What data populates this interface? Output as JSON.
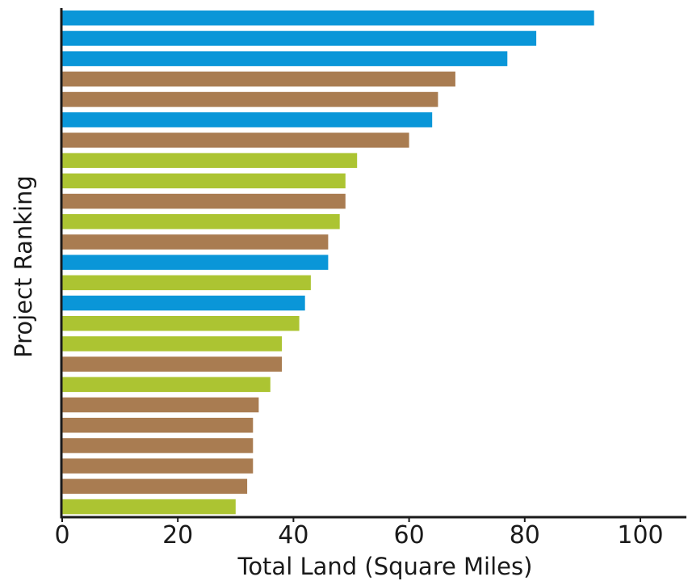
{
  "chart_data": {
    "type": "bar",
    "orientation": "horizontal",
    "title": "",
    "xlabel": "Total Land (Square Miles)",
    "ylabel": "Project Ranking",
    "xlim": [
      0,
      108
    ],
    "xticks": [
      0,
      20,
      40,
      60,
      80,
      100
    ],
    "xtick_labels": [
      "0",
      "20",
      "40",
      "60",
      "80",
      "100"
    ],
    "grid": false,
    "legend": "none",
    "color_map": {
      "blue": "#0a96d8",
      "brown": "#a97c51",
      "green": "#acc432"
    },
    "bars": [
      {
        "value": 92,
        "color": "blue"
      },
      {
        "value": 82,
        "color": "blue"
      },
      {
        "value": 77,
        "color": "blue"
      },
      {
        "value": 68,
        "color": "brown"
      },
      {
        "value": 65,
        "color": "brown"
      },
      {
        "value": 64,
        "color": "blue"
      },
      {
        "value": 60,
        "color": "brown"
      },
      {
        "value": 51,
        "color": "green"
      },
      {
        "value": 49,
        "color": "green"
      },
      {
        "value": 49,
        "color": "brown"
      },
      {
        "value": 48,
        "color": "green"
      },
      {
        "value": 46,
        "color": "brown"
      },
      {
        "value": 46,
        "color": "blue"
      },
      {
        "value": 43,
        "color": "green"
      },
      {
        "value": 42,
        "color": "blue"
      },
      {
        "value": 41,
        "color": "green"
      },
      {
        "value": 38,
        "color": "green"
      },
      {
        "value": 38,
        "color": "brown"
      },
      {
        "value": 36,
        "color": "green"
      },
      {
        "value": 34,
        "color": "brown"
      },
      {
        "value": 33,
        "color": "brown"
      },
      {
        "value": 33,
        "color": "brown"
      },
      {
        "value": 33,
        "color": "brown"
      },
      {
        "value": 32,
        "color": "brown"
      },
      {
        "value": 30,
        "color": "green"
      }
    ]
  }
}
